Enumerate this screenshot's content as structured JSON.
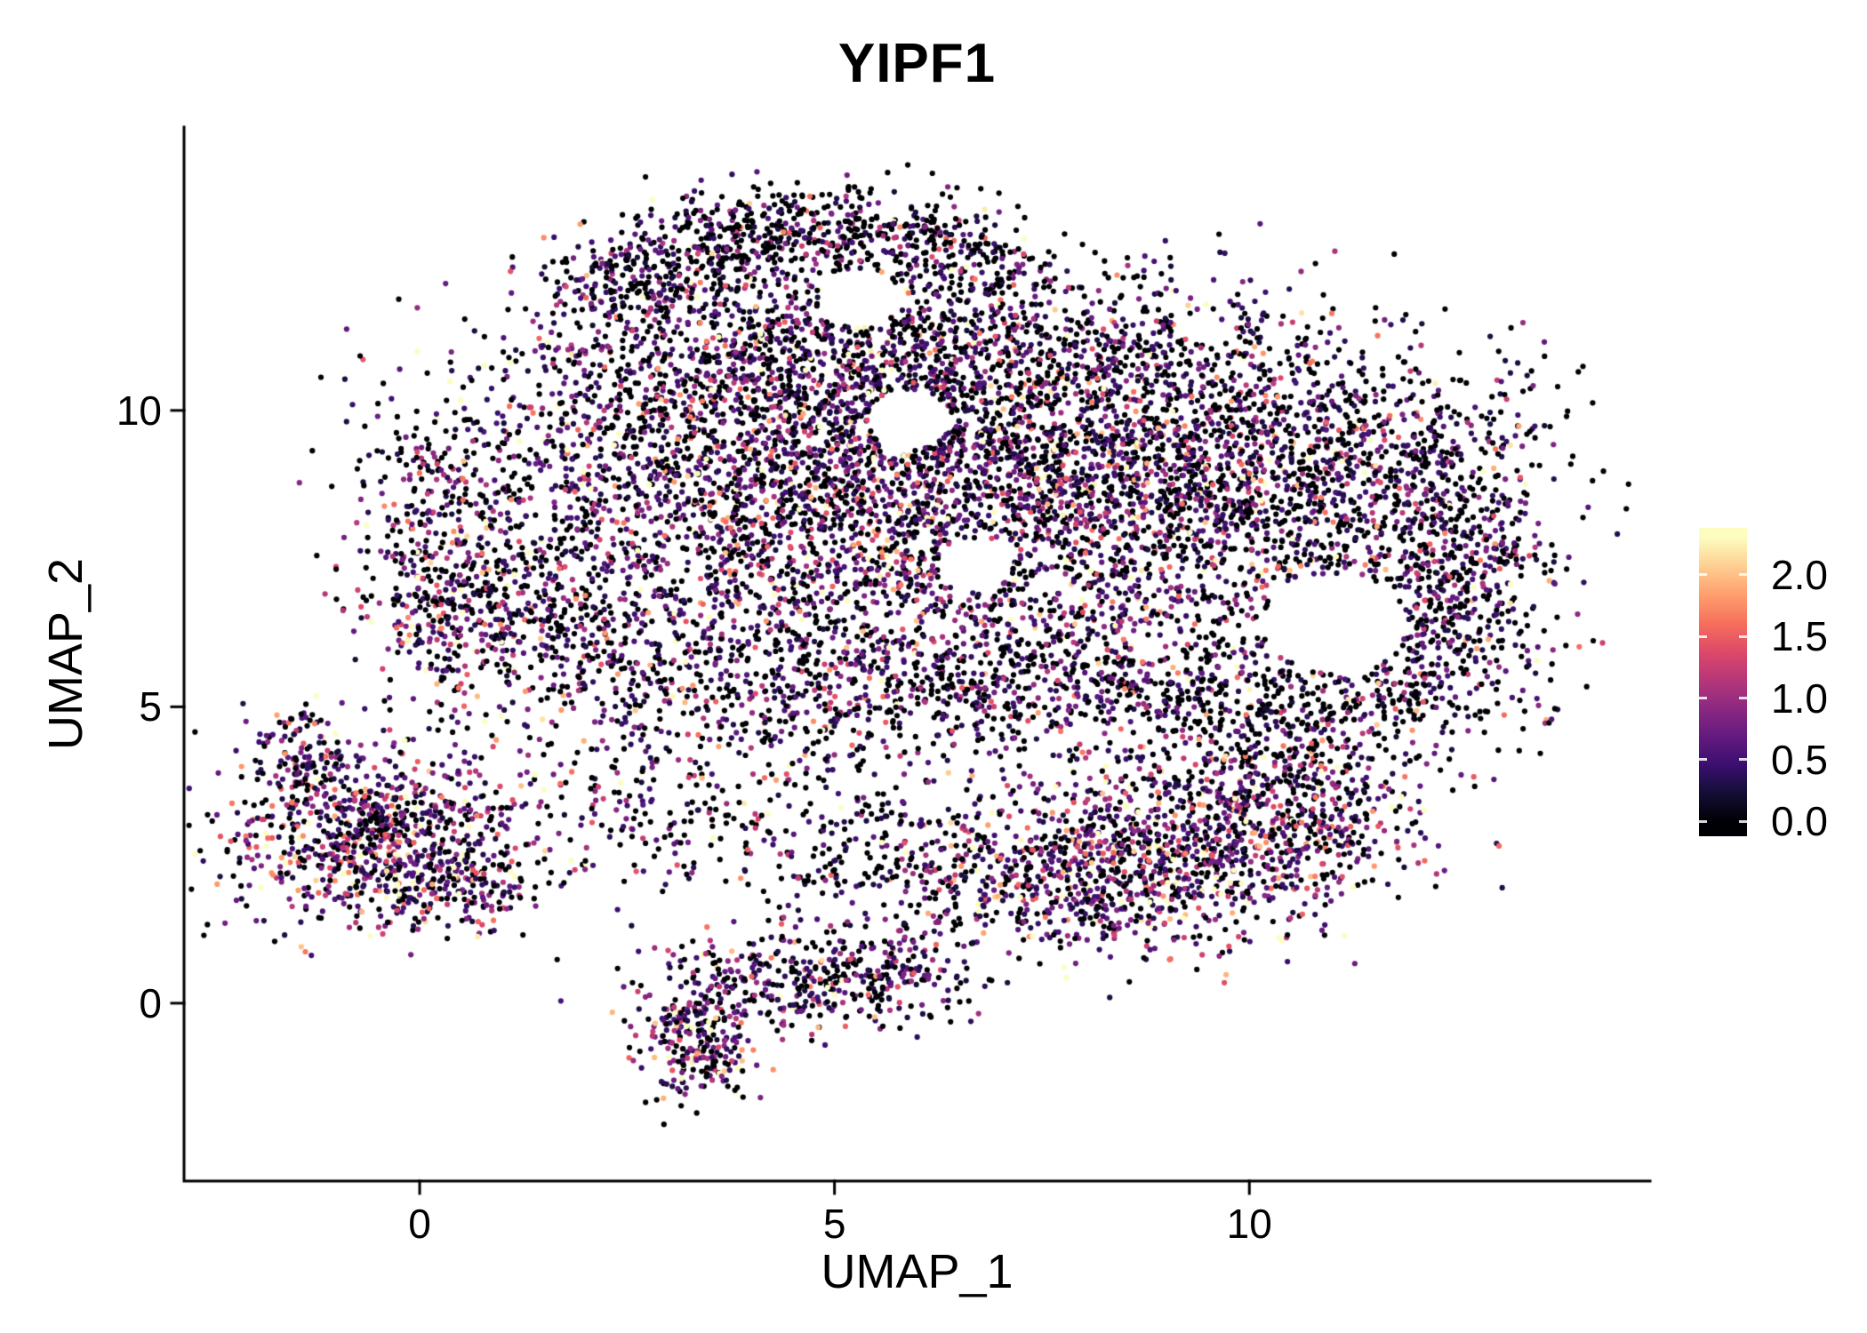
{
  "chart_data": {
    "type": "scatter",
    "title": "YIPF1",
    "xlabel": "UMAP_1",
    "ylabel": "UMAP_2",
    "x_range": [
      -2.84,
      14.83
    ],
    "y_range": [
      -3.0,
      14.78
    ],
    "x_ticks": [
      0,
      5,
      10
    ],
    "y_ticks": [
      0,
      5,
      10
    ],
    "grid": false,
    "background": "#ffffff",
    "axis_color": "#000000",
    "point_radius_px": 3.1,
    "color_range": [
      0,
      2.3
    ],
    "colormap": {
      "name": "magma",
      "stops": [
        [
          0.0,
          "#000004"
        ],
        [
          0.1,
          "#140e36"
        ],
        [
          0.2,
          "#3b0f70"
        ],
        [
          0.3,
          "#641a80"
        ],
        [
          0.4,
          "#8c2981"
        ],
        [
          0.5,
          "#b73779"
        ],
        [
          0.6,
          "#de4968"
        ],
        [
          0.7,
          "#f7705c"
        ],
        [
          0.8,
          "#fe9f6d"
        ],
        [
          0.9,
          "#fecf92"
        ],
        [
          1.0,
          "#fcfdbf"
        ]
      ]
    },
    "legend": {
      "tick_values": [
        2.0,
        1.5,
        1.0,
        0.5,
        0.0
      ],
      "tick_labels": [
        "2.0",
        "1.5",
        "1.0",
        "0.5",
        "0.0"
      ],
      "bar_value_range": [
        -0.12,
        2.38
      ]
    },
    "seed": 42,
    "clusters": [
      {
        "name": "main-left",
        "x": 3.3,
        "y": 9.2,
        "sx": 1.6,
        "sy": 1.5,
        "n": 1500,
        "zero_frac": 0.4,
        "mean_expr": 0.8
      },
      {
        "name": "main-center",
        "x": 5.5,
        "y": 8.2,
        "sx": 1.5,
        "sy": 1.6,
        "n": 1200,
        "zero_frac": 0.42,
        "mean_expr": 0.8
      },
      {
        "name": "main-top",
        "x": 5.0,
        "y": 10.8,
        "sx": 1.6,
        "sy": 0.9,
        "n": 800,
        "zero_frac": 0.46,
        "mean_expr": 0.72
      },
      {
        "name": "main-right",
        "x": 7.8,
        "y": 8.8,
        "sx": 1.5,
        "sy": 1.4,
        "n": 1400,
        "zero_frac": 0.4,
        "mean_expr": 0.8
      },
      {
        "name": "main-far-right",
        "x": 9.8,
        "y": 8.8,
        "sx": 1.3,
        "sy": 1.3,
        "n": 900,
        "zero_frac": 0.45,
        "mean_expr": 0.75
      },
      {
        "name": "main-top-right",
        "x": 7.5,
        "y": 10.8,
        "sx": 1.8,
        "sy": 0.8,
        "n": 600,
        "zero_frac": 0.48,
        "mean_expr": 0.7
      },
      {
        "name": "right-lobe-top",
        "x": 11.5,
        "y": 9.2,
        "sx": 1.1,
        "sy": 1.0,
        "n": 550,
        "zero_frac": 0.52,
        "mean_expr": 0.65
      },
      {
        "name": "right-edge",
        "x": 12.5,
        "y": 7.3,
        "sx": 0.55,
        "sy": 1.1,
        "n": 450,
        "zero_frac": 0.44,
        "mean_expr": 0.8
      },
      {
        "name": "right-lobe-bottom",
        "x": 11.9,
        "y": 5.5,
        "sx": 0.9,
        "sy": 0.8,
        "n": 300,
        "zero_frac": 0.55,
        "mean_expr": 0.6
      },
      {
        "name": "left-edge",
        "x": 0.3,
        "y": 7.6,
        "sx": 0.55,
        "sy": 1.3,
        "n": 450,
        "zero_frac": 0.4,
        "mean_expr": 0.85
      },
      {
        "name": "left-lower",
        "x": 1.5,
        "y": 6.3,
        "sx": 0.8,
        "sy": 1.0,
        "n": 350,
        "zero_frac": 0.42,
        "mean_expr": 0.8
      },
      {
        "name": "south-band-left",
        "x": 4.0,
        "y": 5.6,
        "sx": 1.5,
        "sy": 0.8,
        "n": 450,
        "zero_frac": 0.45,
        "mean_expr": 0.75
      },
      {
        "name": "south-band-mid",
        "x": 6.5,
        "y": 5.3,
        "sx": 1.5,
        "sy": 0.7,
        "n": 400,
        "zero_frac": 0.48,
        "mean_expr": 0.7
      },
      {
        "name": "south-band-right",
        "x": 8.8,
        "y": 5.6,
        "sx": 1.2,
        "sy": 0.8,
        "n": 350,
        "zero_frac": 0.5,
        "mean_expr": 0.7
      },
      {
        "name": "south-band-far-right",
        "x": 10.3,
        "y": 4.7,
        "sx": 0.8,
        "sy": 0.7,
        "n": 250,
        "zero_frac": 0.5,
        "mean_expr": 0.7
      },
      {
        "name": "arc-1",
        "x": 2.5,
        "y": 12.1,
        "sx": 0.45,
        "sy": 0.4,
        "n": 180,
        "zero_frac": 0.55,
        "mean_expr": 0.55
      },
      {
        "name": "arc-2",
        "x": 3.5,
        "y": 12.8,
        "sx": 0.55,
        "sy": 0.45,
        "n": 200,
        "zero_frac": 0.55,
        "mean_expr": 0.55
      },
      {
        "name": "arc-3",
        "x": 4.8,
        "y": 13.1,
        "sx": 0.65,
        "sy": 0.4,
        "n": 220,
        "zero_frac": 0.55,
        "mean_expr": 0.55
      },
      {
        "name": "arc-4",
        "x": 6.1,
        "y": 12.8,
        "sx": 0.55,
        "sy": 0.4,
        "n": 180,
        "zero_frac": 0.55,
        "mean_expr": 0.55
      },
      {
        "name": "arc-5",
        "x": 6.9,
        "y": 12.2,
        "sx": 0.4,
        "sy": 0.35,
        "n": 100,
        "zero_frac": 0.55,
        "mean_expr": 0.55
      },
      {
        "name": "bottom-right-core",
        "x": 9.2,
        "y": 2.6,
        "sx": 1.2,
        "sy": 0.8,
        "n": 900,
        "zero_frac": 0.3,
        "mean_expr": 1.0
      },
      {
        "name": "bottom-right-east",
        "x": 10.6,
        "y": 3.3,
        "sx": 0.7,
        "sy": 0.6,
        "n": 300,
        "zero_frac": 0.32,
        "mean_expr": 1.0
      },
      {
        "name": "bottom-right-west",
        "x": 7.8,
        "y": 2.2,
        "sx": 0.8,
        "sy": 0.6,
        "n": 300,
        "zero_frac": 0.35,
        "mean_expr": 0.9
      },
      {
        "name": "mid-band",
        "x": 5.0,
        "y": 2.8,
        "sx": 1.6,
        "sy": 0.5,
        "n": 250,
        "zero_frac": 0.5,
        "mean_expr": 0.7
      },
      {
        "name": "mid-band-low",
        "x": 6.3,
        "y": 2.0,
        "sx": 0.8,
        "sy": 0.4,
        "n": 120,
        "zero_frac": 0.5,
        "mean_expr": 0.7
      },
      {
        "name": "bridge",
        "x": 2.8,
        "y": 3.6,
        "sx": 0.8,
        "sy": 0.7,
        "n": 120,
        "zero_frac": 0.45,
        "mean_expr": 0.8
      },
      {
        "name": "left-island-core",
        "x": -0.5,
        "y": 2.8,
        "sx": 0.85,
        "sy": 0.75,
        "n": 850,
        "zero_frac": 0.3,
        "mean_expr": 0.95
      },
      {
        "name": "left-island-tip",
        "x": -1.5,
        "y": 4.2,
        "sx": 0.3,
        "sy": 0.4,
        "n": 120,
        "zero_frac": 0.35,
        "mean_expr": 0.9
      },
      {
        "name": "left-island-east",
        "x": 0.6,
        "y": 2.0,
        "sx": 0.5,
        "sy": 0.4,
        "n": 150,
        "zero_frac": 0.35,
        "mean_expr": 0.9
      },
      {
        "name": "bottom-island",
        "x": 4.6,
        "y": 0.4,
        "sx": 1.0,
        "sy": 0.5,
        "n": 350,
        "zero_frac": 0.45,
        "mean_expr": 0.75
      },
      {
        "name": "bottom-island-tip",
        "x": 3.3,
        "y": -0.6,
        "sx": 0.35,
        "sy": 0.5,
        "n": 250,
        "zero_frac": 0.3,
        "mean_expr": 1.0
      },
      {
        "name": "bottom-island-east",
        "x": 5.9,
        "y": 0.6,
        "sx": 0.5,
        "sy": 0.4,
        "n": 120,
        "zero_frac": 0.45,
        "mean_expr": 0.75
      }
    ],
    "holes": [
      {
        "x": 11.05,
        "y": 6.4,
        "r": 0.85
      },
      {
        "x": 5.9,
        "y": 9.85,
        "r": 0.5
      },
      {
        "x": 6.7,
        "y": 7.4,
        "r": 0.45
      },
      {
        "x": 5.3,
        "y": 11.9,
        "r": 0.5
      }
    ]
  }
}
